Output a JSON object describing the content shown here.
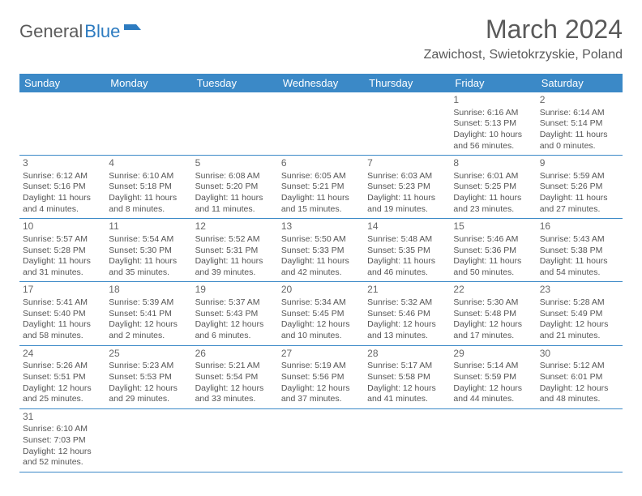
{
  "logo": {
    "text1": "General",
    "text2": "Blue"
  },
  "title": "March 2024",
  "location": "Zawichost, Swietokrzyskie, Poland",
  "title_fontsize": 32,
  "location_fontsize": 16,
  "header_bg": "#3b89c7",
  "header_fg": "#ffffff",
  "border_color": "#3b89c7",
  "cell_text_color": "#555555",
  "day_names": [
    "Sunday",
    "Monday",
    "Tuesday",
    "Wednesday",
    "Thursday",
    "Friday",
    "Saturday"
  ],
  "weeks": [
    [
      null,
      null,
      null,
      null,
      null,
      {
        "n": "1",
        "sr": "Sunrise: 6:16 AM",
        "ss": "Sunset: 5:13 PM",
        "d1": "Daylight: 10 hours",
        "d2": "and 56 minutes."
      },
      {
        "n": "2",
        "sr": "Sunrise: 6:14 AM",
        "ss": "Sunset: 5:14 PM",
        "d1": "Daylight: 11 hours",
        "d2": "and 0 minutes."
      }
    ],
    [
      {
        "n": "3",
        "sr": "Sunrise: 6:12 AM",
        "ss": "Sunset: 5:16 PM",
        "d1": "Daylight: 11 hours",
        "d2": "and 4 minutes."
      },
      {
        "n": "4",
        "sr": "Sunrise: 6:10 AM",
        "ss": "Sunset: 5:18 PM",
        "d1": "Daylight: 11 hours",
        "d2": "and 8 minutes."
      },
      {
        "n": "5",
        "sr": "Sunrise: 6:08 AM",
        "ss": "Sunset: 5:20 PM",
        "d1": "Daylight: 11 hours",
        "d2": "and 11 minutes."
      },
      {
        "n": "6",
        "sr": "Sunrise: 6:05 AM",
        "ss": "Sunset: 5:21 PM",
        "d1": "Daylight: 11 hours",
        "d2": "and 15 minutes."
      },
      {
        "n": "7",
        "sr": "Sunrise: 6:03 AM",
        "ss": "Sunset: 5:23 PM",
        "d1": "Daylight: 11 hours",
        "d2": "and 19 minutes."
      },
      {
        "n": "8",
        "sr": "Sunrise: 6:01 AM",
        "ss": "Sunset: 5:25 PM",
        "d1": "Daylight: 11 hours",
        "d2": "and 23 minutes."
      },
      {
        "n": "9",
        "sr": "Sunrise: 5:59 AM",
        "ss": "Sunset: 5:26 PM",
        "d1": "Daylight: 11 hours",
        "d2": "and 27 minutes."
      }
    ],
    [
      {
        "n": "10",
        "sr": "Sunrise: 5:57 AM",
        "ss": "Sunset: 5:28 PM",
        "d1": "Daylight: 11 hours",
        "d2": "and 31 minutes."
      },
      {
        "n": "11",
        "sr": "Sunrise: 5:54 AM",
        "ss": "Sunset: 5:30 PM",
        "d1": "Daylight: 11 hours",
        "d2": "and 35 minutes."
      },
      {
        "n": "12",
        "sr": "Sunrise: 5:52 AM",
        "ss": "Sunset: 5:31 PM",
        "d1": "Daylight: 11 hours",
        "d2": "and 39 minutes."
      },
      {
        "n": "13",
        "sr": "Sunrise: 5:50 AM",
        "ss": "Sunset: 5:33 PM",
        "d1": "Daylight: 11 hours",
        "d2": "and 42 minutes."
      },
      {
        "n": "14",
        "sr": "Sunrise: 5:48 AM",
        "ss": "Sunset: 5:35 PM",
        "d1": "Daylight: 11 hours",
        "d2": "and 46 minutes."
      },
      {
        "n": "15",
        "sr": "Sunrise: 5:46 AM",
        "ss": "Sunset: 5:36 PM",
        "d1": "Daylight: 11 hours",
        "d2": "and 50 minutes."
      },
      {
        "n": "16",
        "sr": "Sunrise: 5:43 AM",
        "ss": "Sunset: 5:38 PM",
        "d1": "Daylight: 11 hours",
        "d2": "and 54 minutes."
      }
    ],
    [
      {
        "n": "17",
        "sr": "Sunrise: 5:41 AM",
        "ss": "Sunset: 5:40 PM",
        "d1": "Daylight: 11 hours",
        "d2": "and 58 minutes."
      },
      {
        "n": "18",
        "sr": "Sunrise: 5:39 AM",
        "ss": "Sunset: 5:41 PM",
        "d1": "Daylight: 12 hours",
        "d2": "and 2 minutes."
      },
      {
        "n": "19",
        "sr": "Sunrise: 5:37 AM",
        "ss": "Sunset: 5:43 PM",
        "d1": "Daylight: 12 hours",
        "d2": "and 6 minutes."
      },
      {
        "n": "20",
        "sr": "Sunrise: 5:34 AM",
        "ss": "Sunset: 5:45 PM",
        "d1": "Daylight: 12 hours",
        "d2": "and 10 minutes."
      },
      {
        "n": "21",
        "sr": "Sunrise: 5:32 AM",
        "ss": "Sunset: 5:46 PM",
        "d1": "Daylight: 12 hours",
        "d2": "and 13 minutes."
      },
      {
        "n": "22",
        "sr": "Sunrise: 5:30 AM",
        "ss": "Sunset: 5:48 PM",
        "d1": "Daylight: 12 hours",
        "d2": "and 17 minutes."
      },
      {
        "n": "23",
        "sr": "Sunrise: 5:28 AM",
        "ss": "Sunset: 5:49 PM",
        "d1": "Daylight: 12 hours",
        "d2": "and 21 minutes."
      }
    ],
    [
      {
        "n": "24",
        "sr": "Sunrise: 5:26 AM",
        "ss": "Sunset: 5:51 PM",
        "d1": "Daylight: 12 hours",
        "d2": "and 25 minutes."
      },
      {
        "n": "25",
        "sr": "Sunrise: 5:23 AM",
        "ss": "Sunset: 5:53 PM",
        "d1": "Daylight: 12 hours",
        "d2": "and 29 minutes."
      },
      {
        "n": "26",
        "sr": "Sunrise: 5:21 AM",
        "ss": "Sunset: 5:54 PM",
        "d1": "Daylight: 12 hours",
        "d2": "and 33 minutes."
      },
      {
        "n": "27",
        "sr": "Sunrise: 5:19 AM",
        "ss": "Sunset: 5:56 PM",
        "d1": "Daylight: 12 hours",
        "d2": "and 37 minutes."
      },
      {
        "n": "28",
        "sr": "Sunrise: 5:17 AM",
        "ss": "Sunset: 5:58 PM",
        "d1": "Daylight: 12 hours",
        "d2": "and 41 minutes."
      },
      {
        "n": "29",
        "sr": "Sunrise: 5:14 AM",
        "ss": "Sunset: 5:59 PM",
        "d1": "Daylight: 12 hours",
        "d2": "and 44 minutes."
      },
      {
        "n": "30",
        "sr": "Sunrise: 5:12 AM",
        "ss": "Sunset: 6:01 PM",
        "d1": "Daylight: 12 hours",
        "d2": "and 48 minutes."
      }
    ],
    [
      {
        "n": "31",
        "sr": "Sunrise: 6:10 AM",
        "ss": "Sunset: 7:03 PM",
        "d1": "Daylight: 12 hours",
        "d2": "and 52 minutes."
      },
      null,
      null,
      null,
      null,
      null,
      null
    ]
  ]
}
